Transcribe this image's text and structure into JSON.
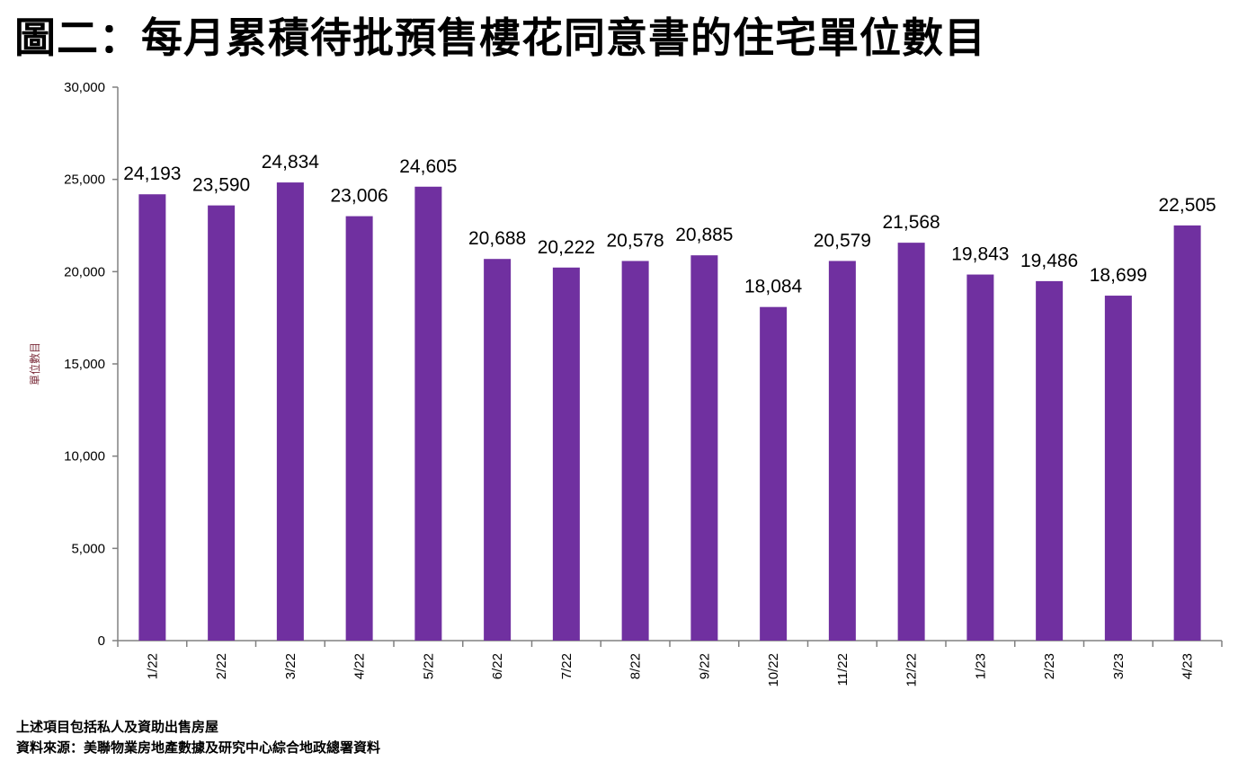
{
  "title": "圖二：每月累積待批預售樓花同意書的住宅單位數目",
  "footnotes": {
    "note": "上述項目包括私人及資助出售房屋",
    "source": "資料來源：美聯物業房地產數據及研究中心綜合地政總署資料"
  },
  "chart_data": {
    "type": "bar",
    "title": "圖二：每月累積待批預售樓花同意書的住宅單位數目",
    "xlabel": "",
    "ylabel": "單位數目",
    "ylim": [
      0,
      30000
    ],
    "yticks": [
      0,
      5000,
      10000,
      15000,
      20000,
      25000,
      30000
    ],
    "ytick_labels": [
      "0",
      "5,000",
      "10,000",
      "15,000",
      "20,000",
      "25,000",
      "30,000"
    ],
    "grid": false,
    "categories": [
      "1/22",
      "2/22",
      "3/22",
      "4/22",
      "5/22",
      "6/22",
      "7/22",
      "8/22",
      "9/22",
      "10/22",
      "11/22",
      "12/22",
      "1/23",
      "2/23",
      "3/23",
      "4/23"
    ],
    "values": [
      24193,
      23590,
      24834,
      23006,
      24605,
      20688,
      20222,
      20578,
      20885,
      18084,
      20579,
      21568,
      19843,
      19486,
      18699,
      22505
    ],
    "data_labels": [
      "24,193",
      "23,590",
      "24,834",
      "23,006",
      "24,605",
      "20,688",
      "20,222",
      "20,578",
      "20,885",
      "18,084",
      "20,579",
      "21,568",
      "19,843",
      "19,486",
      "18,699",
      "22,505"
    ],
    "bar_color": "#7030A0",
    "ylabel_color": "#7B2C3A"
  }
}
